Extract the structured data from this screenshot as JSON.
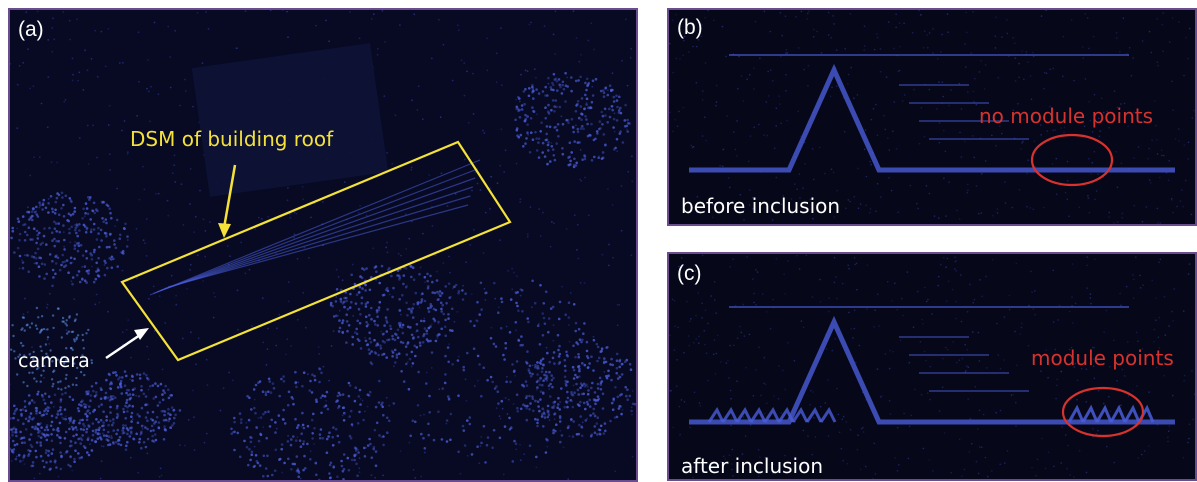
{
  "panel_a": {
    "tag": "(a)",
    "roof_label": "DSM of building roof",
    "camera_label": "camera"
  },
  "panel_b": {
    "tag": "(b)",
    "annotation": "no module points",
    "caption": "before inclusion"
  },
  "panel_c": {
    "tag": "(c)",
    "annotation": "module points",
    "caption": "after inclusion"
  },
  "colors": {
    "background": "#06081a",
    "points": "#4a5cd8",
    "highlight": "#f4e23a",
    "marker": "#d8322e",
    "frame": "#6a4c8f"
  }
}
